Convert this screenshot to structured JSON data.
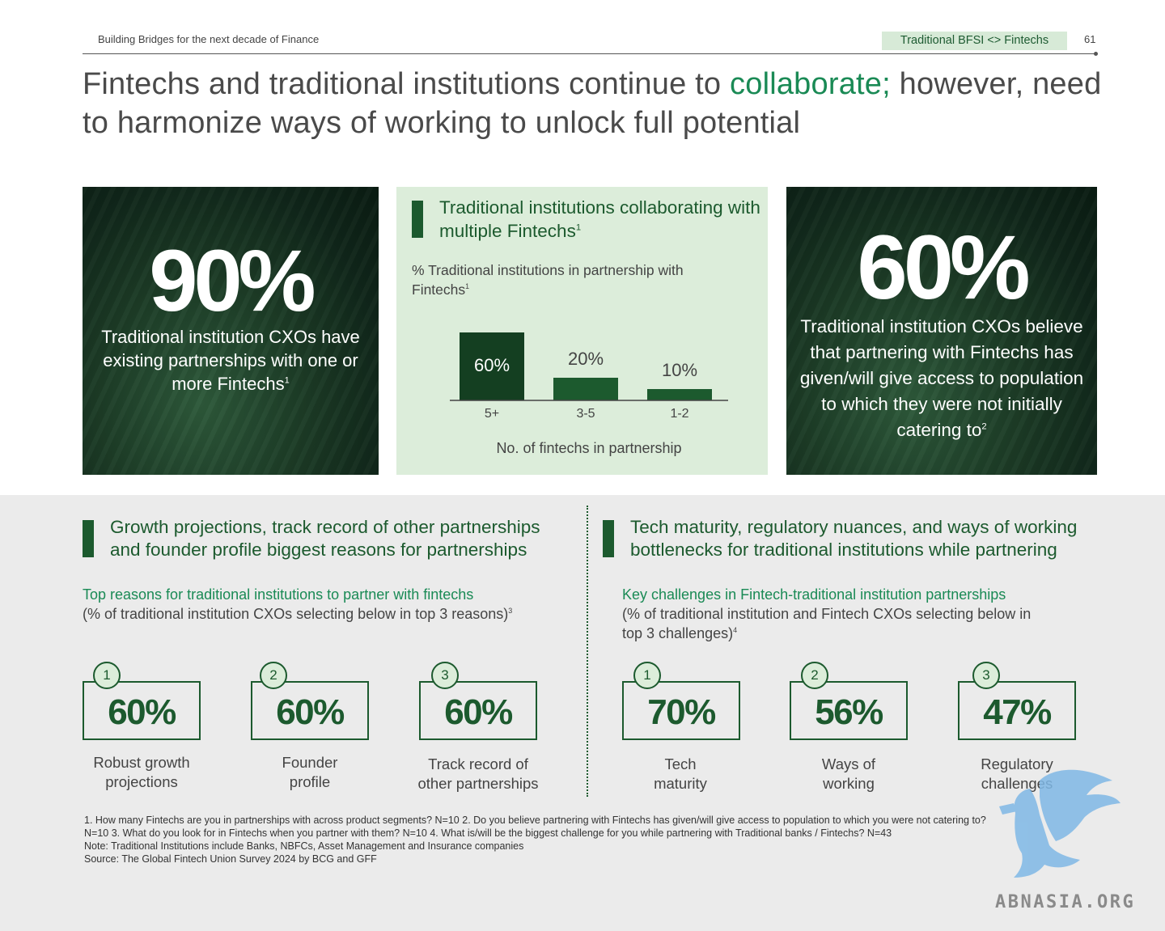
{
  "header": {
    "doc_title": "Building Bridges for the next decade of Finance",
    "section_tag": "Traditional BFSI <> Fintechs",
    "page_number": "61"
  },
  "headline": {
    "part1": "Fintechs and traditional institutions continue to ",
    "accent": "collaborate;",
    "part2": " however, need to harmonize ways of working to unlock full potential"
  },
  "card_left": {
    "value": "90%",
    "text": "Traditional institution CXOs have existing partnerships with one or more Fintechs",
    "footnote_ref": "1"
  },
  "card_middle": {
    "title": "Traditional institutions collaborating with multiple Fintechs",
    "title_ref": "1",
    "subtitle": "% Traditional institutions in partnership with Fintechs",
    "subtitle_ref": "1"
  },
  "chart_data": {
    "type": "bar",
    "categories": [
      "5+",
      "3-5",
      "1-2"
    ],
    "values": [
      60,
      20,
      10
    ],
    "value_labels": [
      "60%",
      "20%",
      "10%"
    ],
    "xlabel": "No. of fintechs in partnership",
    "ylabel": "",
    "ylim": [
      0,
      60
    ],
    "colors": [
      "#143f21",
      "#1c5a2e",
      "#1c5a2e"
    ]
  },
  "card_right": {
    "value": "60%",
    "text": "Traditional institution CXOs believe that partnering with Fintechs has given/will give access to population to which they were not initially catering to",
    "footnote_ref": "2"
  },
  "reasons": {
    "title_line1": "Growth projections, track record of other partnerships",
    "title_line2": "and founder profile biggest reasons for partnerships",
    "subtitle_green": "Top reasons for traditional institutions to partner with fintechs",
    "subtitle_grey": "(% of traditional institution CXOs selecting below in top 3 reasons)",
    "subtitle_ref": "3",
    "items": [
      {
        "rank": "1",
        "value": "60%",
        "label_line1": "Robust growth",
        "label_line2": "projections"
      },
      {
        "rank": "2",
        "value": "60%",
        "label_line1": "Founder",
        "label_line2": "profile"
      },
      {
        "rank": "3",
        "value": "60%",
        "label_line1": "Track record of",
        "label_line2": "other partnerships"
      }
    ]
  },
  "challenges": {
    "title_line1": "Tech maturity, regulatory nuances, and ways of working",
    "title_line2": "bottlenecks for traditional institutions while partnering",
    "subtitle_green": "Key challenges in Fintech-traditional institution partnerships",
    "subtitle_grey_line1": "(% of traditional institution and Fintech CXOs selecting below in",
    "subtitle_grey_line2": "top 3 challenges)",
    "subtitle_ref": "4",
    "items": [
      {
        "rank": "1",
        "value": "70%",
        "label_line1": "Tech",
        "label_line2": "maturity"
      },
      {
        "rank": "2",
        "value": "56%",
        "label_line1": "Ways of",
        "label_line2": "working"
      },
      {
        "rank": "3",
        "value": "47%",
        "label_line1": "Regulatory",
        "label_line2": "challenges"
      }
    ]
  },
  "footnotes": [
    "1. How many Fintechs are you in partnerships with across product segments?  N=10 2. Do you believe partnering with Fintechs has given/will give access to population to which you were not catering to?",
    "N=10 3. What do you look for in Fintechs when you partner with them? N=10 4. What is/will be the biggest challenge for you while partnering with Traditional banks / Fintechs? N=43",
    "Note: Traditional Institutions include Banks, NBFCs, Asset Management and Insurance companies",
    "Source: The Global Fintech Union Survey 2024 by BCG and GFF"
  ],
  "watermark": {
    "text": "ABNASIA.ORG",
    "icon": "griffin-logo-icon"
  }
}
